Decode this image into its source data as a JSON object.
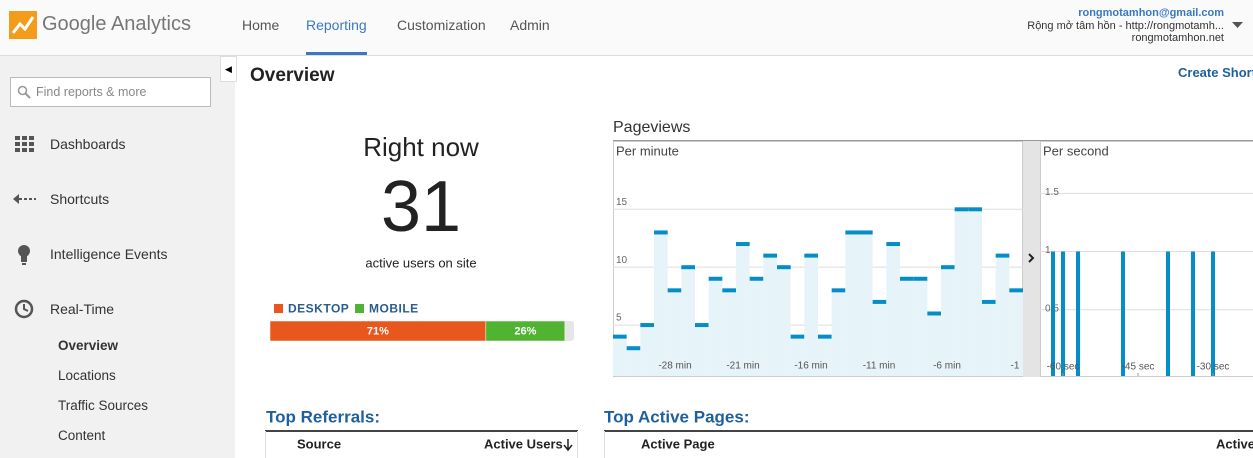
{
  "header": {
    "logo": "Google Analytics",
    "nav": [
      "Home",
      "Reporting",
      "Customization",
      "Admin"
    ],
    "account": {
      "email": "rongmotamhon@gmail.com",
      "site": "Rộng mở tâm hồn - http://rongmotamh...",
      "domain": "rongmotamhon.net"
    }
  },
  "sidebar": {
    "search_placeholder": "Find reports & more",
    "items": [
      "Dashboards",
      "Shortcuts",
      "Intelligence Events",
      "Real-Time"
    ],
    "subitems": [
      "Overview",
      "Locations",
      "Traffic Sources",
      "Content"
    ]
  },
  "main": {
    "title": "Overview",
    "action": "Create Short",
    "right_now": {
      "heading": "Right now",
      "count": "31",
      "caption": "active users on site",
      "legend": [
        "DESKTOP",
        "MOBILE"
      ],
      "values": [
        71,
        26
      ],
      "value_labels": [
        "71%",
        "26%"
      ],
      "colors": [
        "#e8571e",
        "#50b432"
      ]
    },
    "pageviews": {
      "title": "Pageviews",
      "per_minute": {
        "label": "Per minute",
        "values": [
          4,
          3,
          5,
          13,
          8,
          10,
          5,
          9,
          8,
          12,
          9,
          11,
          10,
          4,
          11,
          4,
          8,
          13,
          13,
          7,
          12,
          9,
          9,
          6,
          10,
          15,
          15,
          7,
          11,
          8
        ],
        "ylim": [
          0.6,
          20.9
        ],
        "yticks": [
          5,
          10,
          15
        ],
        "x_labels": [
          "-28 min",
          "-21 min",
          "-16 min",
          "-11 min",
          "-6 min",
          "-1"
        ]
      },
      "per_second": {
        "label": "Per second",
        "x": [
          -62,
          -60,
          -57,
          -48,
          -39,
          -34,
          -30
        ],
        "values": [
          1,
          1,
          1,
          1,
          1,
          1,
          1
        ],
        "xlim": [
          -64.6,
          -22
        ],
        "ylim": [
          -0.07,
          1.95
        ],
        "yticks": [
          0.5,
          1,
          1.5
        ],
        "xticks": [
          {
            "value": -60,
            "label": "-60 sec"
          },
          {
            "value": -45,
            "label": "-45 sec"
          },
          {
            "value": -30,
            "label": "-30 sec"
          }
        ]
      }
    },
    "top_referrals": {
      "title": "Top Referrals:",
      "columns": [
        "Source",
        "Active Users"
      ]
    },
    "top_pages": {
      "title": "Top Active Pages:",
      "columns": [
        "Active Page",
        "Active"
      ]
    }
  }
}
